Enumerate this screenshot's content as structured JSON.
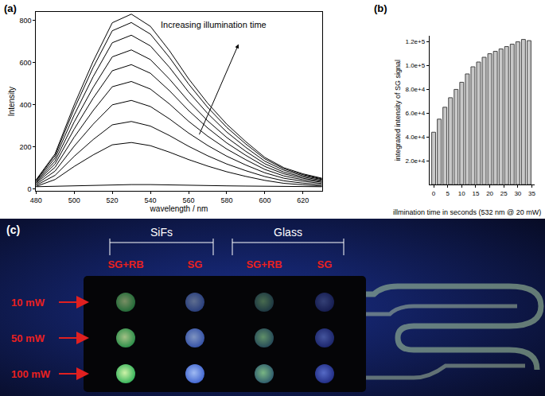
{
  "chart_data": [
    {
      "type": "line",
      "title": "(a)",
      "x_label": "wavelength / nm",
      "y_label": "Intensity",
      "annotations": [
        "Increasing illumination time"
      ],
      "x": [
        480,
        490,
        500,
        510,
        520,
        530,
        540,
        550,
        560,
        570,
        580,
        590,
        600,
        610,
        620,
        630
      ],
      "series": [
        {
          "color": "#000000",
          "values": [
            10,
            12,
            15,
            18,
            20,
            20,
            20,
            18,
            17,
            15,
            14,
            13,
            12,
            11,
            10,
            10
          ]
        },
        {
          "color": "#000000",
          "values": [
            11,
            44,
            106,
            161,
            209,
            220,
            205,
            174,
            139,
            108,
            81,
            59,
            40,
            26,
            19,
            13
          ]
        },
        {
          "color": "#000000",
          "values": [
            16,
            64,
            154,
            234,
            304,
            320,
            298,
            253,
            202,
            157,
            118,
            86,
            58,
            38,
            27,
            19
          ]
        },
        {
          "color": "#000000",
          "values": [
            21,
            84,
            202,
            307,
            399,
            420,
            391,
            332,
            265,
            206,
            155,
            113,
            76,
            50,
            36,
            25
          ]
        },
        {
          "color": "#000000",
          "values": [
            26,
            102,
            245,
            372,
            485,
            510,
            474,
            403,
            321,
            250,
            189,
            138,
            92,
            61,
            43,
            31
          ]
        },
        {
          "color": "#000000",
          "values": [
            30,
            118,
            283,
            431,
            561,
            590,
            549,
            466,
            372,
            289,
            218,
            159,
            106,
            71,
            50,
            35
          ]
        },
        {
          "color": "#000000",
          "values": [
            33,
            132,
            317,
            482,
            627,
            660,
            614,
            521,
            416,
            323,
            244,
            178,
            119,
            79,
            56,
            40
          ]
        },
        {
          "color": "#000000",
          "values": [
            37,
            146,
            350,
            533,
            694,
            730,
            679,
            577,
            460,
            358,
            270,
            197,
            131,
            88,
            62,
            44
          ]
        },
        {
          "color": "#000000",
          "values": [
            40,
            158,
            379,
            577,
            751,
            790,
            735,
            624,
            498,
            387,
            292,
            213,
            142,
            95,
            67,
            47
          ]
        },
        {
          "color": "#000000",
          "values": [
            42,
            166,
            398,
            606,
            789,
            830,
            772,
            656,
            523,
            407,
            307,
            224,
            149,
            100,
            71,
            50
          ]
        }
      ],
      "line_style": "solid",
      "xlim": [
        480,
        630
      ],
      "xticks": [
        480,
        500,
        520,
        540,
        560,
        580,
        600,
        620
      ],
      "ylim": [
        -10,
        840
      ],
      "yticks": [
        0,
        200,
        400,
        600,
        800
      ],
      "grid": false
    },
    {
      "type": "bar",
      "title": "(b)",
      "x_label": "illmination time in seconds (532 nm @ 20 mW)",
      "y_label": "integrated intensity of SG signal",
      "x": [
        0,
        2,
        4,
        6,
        8,
        10,
        12,
        14,
        16,
        18,
        20,
        22,
        24,
        26,
        28,
        30,
        32,
        34
      ],
      "values": [
        44000,
        55000,
        65000,
        73000,
        80000,
        86000,
        93000,
        99000,
        103000,
        107000,
        110000,
        112000,
        114000,
        116000,
        118000,
        120000,
        122000,
        121000
      ],
      "color": "#c8c8c8",
      "xlim": [
        -1.5,
        36
      ],
      "xticks": [
        0,
        5,
        10,
        15,
        20,
        25,
        30,
        35
      ],
      "ylim": [
        0,
        125000
      ],
      "yticks": [
        {
          "value": 20000,
          "label": "2.0e+4"
        },
        {
          "value": 40000,
          "label": "4.0e+4"
        },
        {
          "value": 60000,
          "label": "6.0e+4"
        },
        {
          "value": 80000,
          "label": "8.0e+4"
        },
        {
          "value": 100000,
          "label": "1.0e+5"
        },
        {
          "value": 120000,
          "label": "1.2e+5"
        }
      ],
      "grid": false
    }
  ],
  "photo": {
    "label": "(c)",
    "groups": [
      {
        "name": "SiFs",
        "columns": [
          "SG+RB",
          "SG"
        ]
      },
      {
        "name": "Glass",
        "columns": [
          "SG+RB",
          "SG"
        ]
      }
    ],
    "rows": [
      "10 mW",
      "50 mW",
      "100 mW"
    ]
  }
}
